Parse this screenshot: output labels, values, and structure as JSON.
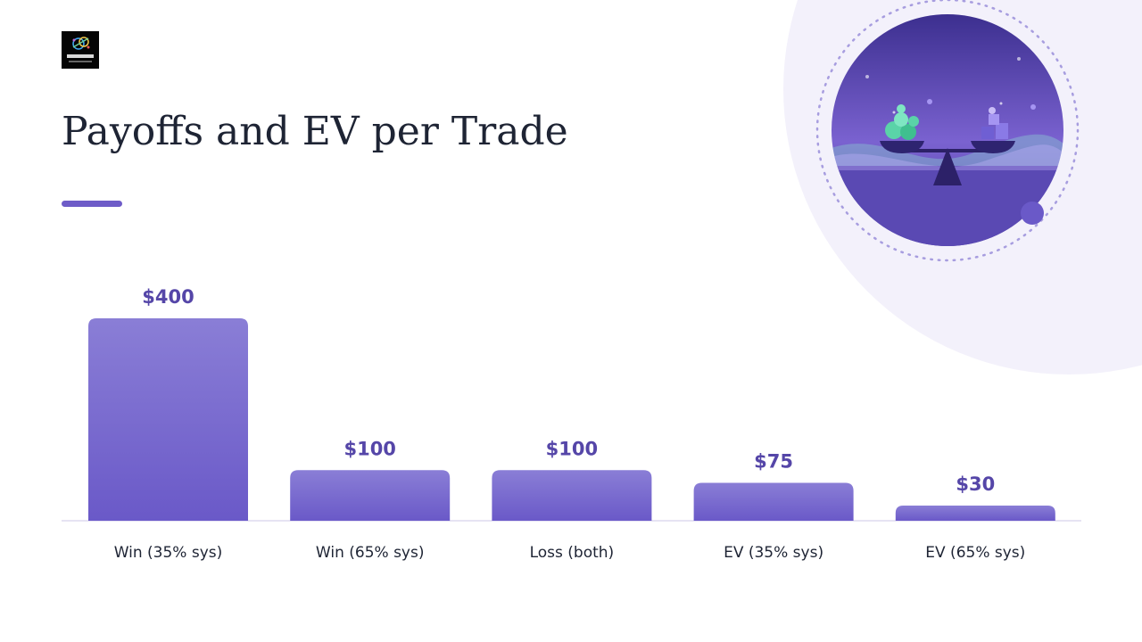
{
  "logo": {
    "name": "logo-image"
  },
  "title": "Payoffs and EV per Trade",
  "colors": {
    "bar_top": "#8a7ed6",
    "bar_bottom": "#6a59c8",
    "value_label": "#5546a8",
    "accent": "#6e5cc8",
    "title": "#1e2434"
  },
  "chart_data": {
    "type": "bar",
    "categories": [
      "Win (35% sys)",
      "Win (65% sys)",
      "Loss (both)",
      "EV (35% sys)",
      "EV (65% sys)"
    ],
    "values": [
      400,
      100,
      100,
      75,
      30
    ],
    "value_labels": [
      "$400",
      "$100",
      "$100",
      "$75",
      "$30"
    ],
    "title": "",
    "xlabel": "",
    "ylabel": "",
    "ylim": [
      0,
      400
    ],
    "grid": false,
    "legend": "none"
  }
}
